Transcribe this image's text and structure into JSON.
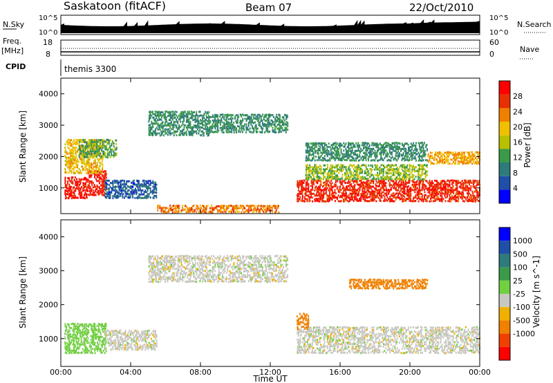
{
  "header": {
    "station": "Saskatoon (fitACF)",
    "beam": "Beam 07",
    "date": "22/Oct/2010"
  },
  "noise_panel": {
    "left_label": "N.Sky",
    "left_ticks": [
      "10^5",
      "10^0"
    ],
    "right_label": "N.Search",
    "right_ticks": [
      "10^5",
      "10^0"
    ]
  },
  "freq_panel": {
    "left_label_1": "Freq.",
    "left_label_2": "[MHz]",
    "left_ticks": [
      "18",
      "8"
    ],
    "right_label": "Nave",
    "right_ticks": [
      "60",
      "0"
    ]
  },
  "cpid_panel": {
    "label": "CPID",
    "program": "themis 3300"
  },
  "x_axis": {
    "label": "Time UT",
    "ticks": [
      "00:00",
      "04:00",
      "08:00",
      "12:00",
      "16:00",
      "20:00",
      "00:00"
    ]
  },
  "colors": {
    "power": [
      "#0000ff",
      "#1f4fa8",
      "#2f7a7a",
      "#3a9a4a",
      "#b8c000",
      "#f0c000",
      "#f08000",
      "#e83000",
      "#ff0000"
    ],
    "velocity": [
      "#ff0000",
      "#f04000",
      "#f08000",
      "#f0b000",
      "#c8c8c0",
      "#70d040",
      "#3a9a4a",
      "#2f7a7a",
      "#1f4fa8",
      "#0000ff"
    ],
    "power_pos": [
      "#0000ff",
      "#1f4fa8",
      "#2f7a7a",
      "#3a9a4a",
      "#b8c000",
      "#f0c000",
      "#f08000",
      "#e83000",
      "#ff0000"
    ],
    "gray": "#c0c0c0"
  },
  "chart_data": [
    {
      "type": "heatmap",
      "title": "Power",
      "xlabel": "Time UT",
      "ylabel": "Slant Range [km]",
      "xlim": [
        0,
        24
      ],
      "ylim": [
        180,
        4500
      ],
      "yticks": [
        "1000",
        "2000",
        "3000",
        "4000"
      ],
      "colorbar": {
        "label": "Power [dB]",
        "ticks": [
          "4",
          "8",
          "12",
          "16",
          "20",
          "24",
          "28"
        ],
        "range": [
          0,
          30
        ]
      },
      "regions": [
        {
          "t0": 0.2,
          "t1": 1.5,
          "r0": 700,
          "r1": 1400,
          "value": 27
        },
        {
          "t0": 1.5,
          "t1": 2.6,
          "r0": 800,
          "r1": 1600,
          "value": 27
        },
        {
          "t0": 0.2,
          "t1": 2.4,
          "r0": 1500,
          "r1": 2600,
          "value": 18
        },
        {
          "t0": 1.0,
          "t1": 3.2,
          "r0": 2000,
          "r1": 2600,
          "value": 12
        },
        {
          "t0": 2.5,
          "t1": 5.5,
          "r0": 700,
          "r1": 1300,
          "value": 6
        },
        {
          "t0": 5.0,
          "t1": 8.5,
          "r0": 2700,
          "r1": 3500,
          "value": 10
        },
        {
          "t0": 8.5,
          "t1": 13.0,
          "r0": 2800,
          "r1": 3400,
          "value": 10
        },
        {
          "t0": 5.5,
          "t1": 12.5,
          "r0": 250,
          "r1": 500,
          "value": 22
        },
        {
          "t0": 13.5,
          "t1": 24.0,
          "r0": 600,
          "r1": 1300,
          "value": 26
        },
        {
          "t0": 14.0,
          "t1": 21.0,
          "r0": 1300,
          "r1": 1800,
          "value": 14
        },
        {
          "t0": 14.0,
          "t1": 21.0,
          "r0": 1900,
          "r1": 2500,
          "value": 10
        },
        {
          "t0": 21.0,
          "t1": 24.0,
          "r0": 1800,
          "r1": 2200,
          "value": 20
        }
      ]
    },
    {
      "type": "heatmap",
      "title": "Velocity",
      "xlabel": "Time UT",
      "ylabel": "Slant Range [km]",
      "xlim": [
        0,
        24
      ],
      "ylim": [
        180,
        4500
      ],
      "yticks": [
        "1000",
        "2000",
        "3000",
        "4000"
      ],
      "colorbar": {
        "label": "Velocity [m s^-1]",
        "ticks": [
          "1000",
          "500",
          "100",
          "25",
          "-25",
          "-100",
          "-500",
          "-1000"
        ]
      },
      "regions": [
        {
          "t0": 0.2,
          "t1": 2.6,
          "r0": 600,
          "r1": 1500,
          "value": 50
        },
        {
          "t0": 2.5,
          "t1": 5.5,
          "r0": 700,
          "r1": 1300,
          "value": 0
        },
        {
          "t0": 5.0,
          "t1": 13.0,
          "r0": 2700,
          "r1": 3500,
          "value": 0
        },
        {
          "t0": 13.5,
          "t1": 24.0,
          "r0": 600,
          "r1": 1400,
          "value": 0
        },
        {
          "t0": 16.5,
          "t1": 21.0,
          "r0": 2500,
          "r1": 2800,
          "value": -400
        },
        {
          "t0": 13.5,
          "t1": 14.2,
          "r0": 1300,
          "r1": 1800,
          "value": -400
        }
      ]
    }
  ]
}
